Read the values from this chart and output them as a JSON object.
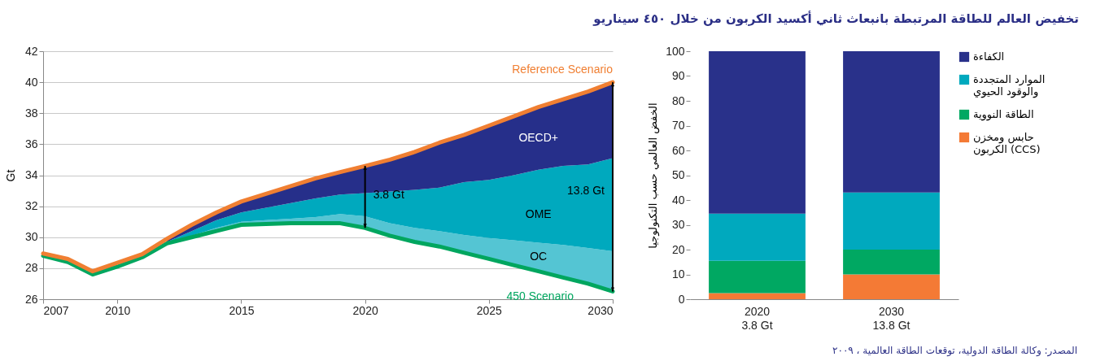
{
  "chart_data": [
    {
      "type": "area",
      "ylabel": "Gt",
      "xlim": [
        2007,
        2030
      ],
      "xticks": [
        2007,
        2010,
        2015,
        2020,
        2025,
        2030
      ],
      "ylim": [
        26,
        42
      ],
      "yticks": [
        26,
        28,
        30,
        32,
        34,
        36,
        38,
        40,
        42
      ],
      "grid": "y",
      "marker": "none",
      "line_style": "solid",
      "series": [
        {
          "name": "450 Scenario",
          "type": "line",
          "color": "#00a65f",
          "x": [
            2007,
            2008,
            2009,
            2010,
            2011,
            2012,
            2013,
            2014,
            2015,
            2016,
            2017,
            2018,
            2019,
            2020,
            2021,
            2022,
            2023,
            2024,
            2025,
            2026,
            2027,
            2028,
            2029,
            2030
          ],
          "values": [
            28.8,
            28.4,
            27.6,
            28.1,
            28.7,
            29.6,
            30.0,
            30.4,
            30.8,
            30.85,
            30.9,
            30.9,
            30.9,
            30.6,
            30.1,
            29.7,
            29.4,
            29.0,
            28.6,
            28.2,
            27.8,
            27.4,
            27.0,
            26.5
          ]
        },
        {
          "name": "OC",
          "type": "area",
          "color": "#54c5d3",
          "x": [
            2012,
            2013,
            2014,
            2015,
            2016,
            2017,
            2018,
            2019,
            2020,
            2021,
            2022,
            2023,
            2024,
            2025,
            2026,
            2027,
            2028,
            2029,
            2030
          ],
          "values": [
            29.6,
            30.1,
            30.6,
            31.0,
            31.1,
            31.2,
            31.3,
            31.5,
            31.35,
            30.9,
            30.6,
            30.4,
            30.15,
            29.95,
            29.8,
            29.65,
            29.5,
            29.3,
            29.1
          ]
        },
        {
          "name": "OME",
          "type": "area",
          "color": "#00a9be",
          "x": [
            2012,
            2013,
            2014,
            2015,
            2016,
            2017,
            2018,
            2019,
            2020,
            2021,
            2022,
            2023,
            2024,
            2025,
            2026,
            2027,
            2028,
            2029,
            2030
          ],
          "values": [
            29.7,
            30.4,
            31.1,
            31.6,
            31.9,
            32.2,
            32.5,
            32.75,
            32.85,
            32.95,
            33.05,
            33.2,
            33.55,
            33.7,
            34.0,
            34.35,
            34.6,
            34.7,
            35.1
          ]
        },
        {
          "name": "OECD+",
          "type": "area",
          "color": "#262f8a",
          "x": [
            2012,
            2013,
            2014,
            2015,
            2016,
            2017,
            2018,
            2019,
            2020,
            2021,
            2022,
            2023,
            2024,
            2025,
            2026,
            2027,
            2028,
            2029,
            2030
          ],
          "values": [
            29.9,
            30.8,
            31.6,
            32.3,
            32.8,
            33.3,
            33.8,
            34.2,
            34.6,
            35.0,
            35.5,
            36.1,
            36.6,
            37.2,
            37.8,
            38.4,
            38.9,
            39.4,
            40.0
          ]
        },
        {
          "name": "Reference Scenario",
          "type": "line",
          "color": "#f07f32",
          "x": [
            2007,
            2008,
            2009,
            2010,
            2011,
            2012,
            2013,
            2014,
            2015,
            2016,
            2017,
            2018,
            2019,
            2020,
            2021,
            2022,
            2023,
            2024,
            2025,
            2026,
            2027,
            2028,
            2029,
            2030
          ],
          "values": [
            28.95,
            28.6,
            27.8,
            28.35,
            28.9,
            29.9,
            30.8,
            31.6,
            32.3,
            32.8,
            33.3,
            33.8,
            34.2,
            34.6,
            35.0,
            35.5,
            36.1,
            36.6,
            37.2,
            37.8,
            38.4,
            38.9,
            39.4,
            40.0
          ]
        }
      ],
      "annotations": [
        {
          "text": "3.8 Gt",
          "x": 2020,
          "y": 32.7
        },
        {
          "text": "13.8 Gt",
          "x": 2030,
          "y": 33.0
        }
      ]
    },
    {
      "type": "bar",
      "stacked": true,
      "title": "تخفيض العالم للطاقة المرتبطة بانبعاث ثاني أكسيد الكربون من خلال ٤٥٠ سيناريو",
      "ylabel": "الخفض العالمي حسب التكنولوجيا",
      "categories": [
        "2020\n3.8 Gt",
        "2030\n13.8 Gt"
      ],
      "ylim": [
        0,
        100
      ],
      "yticks": [
        0,
        10,
        20,
        30,
        40,
        50,
        60,
        70,
        80,
        90,
        100
      ],
      "grid": false,
      "legend": "right",
      "series": [
        {
          "name": "حابس ومخزن\nالكربون (CCS)",
          "color": "#f47a35",
          "values": [
            2.5,
            10
          ]
        },
        {
          "name": "الطاقة النووية",
          "color": "#00a862",
          "values": [
            13,
            10
          ]
        },
        {
          "name": "الموارد المتجددة\nوالوقود الحيوي",
          "color": "#00a9be",
          "values": [
            19,
            23
          ]
        },
        {
          "name": "الكفاءة",
          "color": "#29318a",
          "values": [
            65.5,
            57
          ]
        }
      ],
      "annotations": [
        "المصدر: وكالة الطاقة الدولية، توقعات الطاقة العالمية ، ٢٠٠٩"
      ]
    }
  ]
}
